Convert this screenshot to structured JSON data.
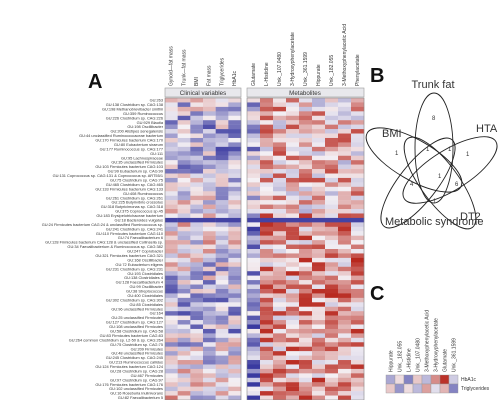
{
  "panel_a": {
    "letter": "A",
    "group_labels": [
      "Clinical variables",
      "Metabolites"
    ],
    "clinical_columns": [
      "Gynoid—fat mass",
      "Trunk—fat mass",
      "BMI",
      "Fat mass",
      "Triglycerides",
      "HbA1c"
    ],
    "metabolite_columns": [
      "Glutamate",
      "L-Histidine",
      "Unk._107.0480",
      "3-Hydroxyphenylacetate",
      "Unk._361.1599",
      "Hippurate",
      "Unk._182.055",
      "3-Methoxyphenylacetic Acid",
      "Phenylacetate"
    ],
    "rows": [
      "GU:263",
      "GU:138 Clostridium sp. CAG:138",
      "GU:198 Methanobrevibacter smithii",
      "GU:359 Ruminococcus",
      "GU:226 Clostridium sp. CAG:226",
      "GU:929 Blautia",
      "GU:198 Oscillibacter",
      "GU:200 Alistipes senegalensis",
      "GU:44 unclassified Ruminococcaceae bacterium",
      "GU:170 Firmicutes bacterium CAG:170",
      "GU:80 Eubacterium siraeum",
      "GU:177 Ruminococcus sp. CAG:177",
      "GU:111",
      "GU:95 Lachnospiraceae",
      "GU:35 unclassified Firmicutes",
      "GU:103 Firmicutes bacterium CAG:103",
      "GU:99 Eubacterium sp. CAG:99",
      "GU:131 Coprococcus sp. CAG:131 & Coprococcus sp. ART55/1",
      "GU:75 Clostridium sp. CAG:75",
      "GU:465 Clostridium sp. CAG:465",
      "GU:133 Firmicutes bacterium CAG:133",
      "GU:408 Ruminococcus",
      "GU:261 Clostridium sp. CAG:261",
      "GU:225 Butyrivibrio crossotus",
      "GU:318 Butyricimonas sp. CAG:318",
      "GU:375 Coprococcus sp.45",
      "GU:183 Erysipelotrichaceae bacterium",
      "GU:18 Bacteroides vulgatus",
      "GU:24 Firmicutes bacterium CAG:24 & unclassified Ruminococcus sp.",
      "GU:241 Clostridium sp. CAG:241",
      "GU:110 Firmicutes bacterium CAG:110",
      "GU:74 Faecalibacterium 6",
      "GU:128 Firmicutes bacterium CAG:128 & unclassified Collinsella sp.",
      "GU:34 Faecalibacterium & Ruminococcus sp. CAG:382",
      "GU:247 Coprobacter",
      "GU:321 Firmicutes bacterium CAG:321",
      "GU:168 Oscillibacter",
      "GU:72 Eubacterium eligens",
      "GU:231 Clostridium sp. CAG:231",
      "GU:193 Clostridiales",
      "GU:138 Clostridiales 4",
      "GU:128 Faecalibacterium 4",
      "GU:99 Oscillibacter",
      "GU:38 Streptococcus",
      "GU:400 Clostridiales",
      "GU:302 Clostridium sp. CAG:302",
      "GU:85 Clostridiales",
      "GU:96 unclassified Firmicutes",
      "GU:164",
      "GU:25 unclassified Firmicutes",
      "GU:127 Clostridium sp. CAG:127",
      "GU:108 unclassified Firmicutes",
      "GU:58 Clostridium sp. CAG:58",
      "GU:83 Firmicutes bacterium CAG:83",
      "GU:264 common Clostridium sp. L2-50 & sp. CAG:264",
      "GU:75 Clostridium sp. CAG:75",
      "GU:209 Firmicutes",
      "GU:48 unclassified Firmicutes",
      "GU:245 Clostridium sp. CAG:245",
      "GU:213 Ruminococcus callidus",
      "GU:124 Firmicutes bacterium CAG:124",
      "GU:28 Clostridium sp. CAG:28",
      "GU:467 Firmicutes",
      "GU:97 Clostridium sp. CAG:97",
      "GU:176 Firmicutes bacterium CAG:176",
      "GU:102 unclassified Firmicutes",
      "GU:16 Roseburia inulinivorans",
      "GU:82 Faecalibacterium 5"
    ]
  },
  "panel_b": {
    "letter": "B",
    "sets": [
      "Trunk fat",
      "BMI",
      "HTA",
      "Metabolic syndrome",
      "DT2"
    ],
    "counts": [
      "8",
      "1",
      "1",
      "1",
      "1",
      "1",
      "6",
      "4",
      "1"
    ]
  },
  "panel_c": {
    "letter": "C",
    "columns": [
      "Hippurate",
      "Unk._182.055",
      "L-Histidine",
      "Unk._107.0480",
      "3-Methoxyphenylacetic Acid",
      "3-Hydroxyphenylacetate",
      "Glutamate",
      "Unk._361.1599"
    ],
    "rows": [
      "HbA1c",
      "Triglycerides"
    ]
  },
  "colors": {
    "negative": "#3a3aa0",
    "neutral": "#f4f0f4",
    "positive": "#b8281e",
    "highlight_row": "#5a52b8"
  }
}
